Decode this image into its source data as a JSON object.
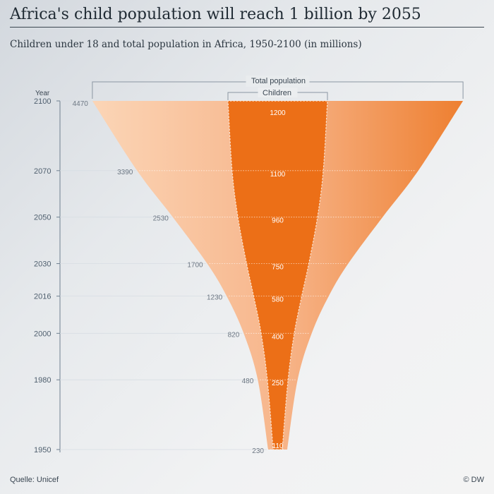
{
  "header": {
    "title": "Africa's child population will reach 1 billion by 2055",
    "subtitle": "Children under 18 and total population in Africa, 1950-2100 (in millions)"
  },
  "footer": {
    "source": "Quelle: Unicef",
    "credit": "© DW"
  },
  "colors": {
    "total_light": "#fbd3b3",
    "total_mid": "#f6b386",
    "total_dark": "#ef8a3e",
    "children": "#ec6f17",
    "axis": "#6f8090"
  },
  "chart_data": {
    "type": "funnel",
    "title": "Africa's child population will reach 1 billion by 2055",
    "subtitle": "Children under 18 and total population in Africa, 1950-2100 (in millions)",
    "y_axis_label": "Year",
    "ylim": [
      1950,
      2100
    ],
    "legend": {
      "total": "Total population",
      "children": "Children"
    },
    "years": [
      2100,
      2070,
      2050,
      2030,
      2016,
      2000,
      1980,
      1950
    ],
    "series": [
      {
        "name": "Total population",
        "values": [
          4470,
          3390,
          2530,
          1700,
          1230,
          820,
          480,
          230
        ]
      },
      {
        "name": "Children",
        "values": [
          1200,
          1100,
          960,
          750,
          580,
          400,
          250,
          110
        ]
      }
    ]
  }
}
